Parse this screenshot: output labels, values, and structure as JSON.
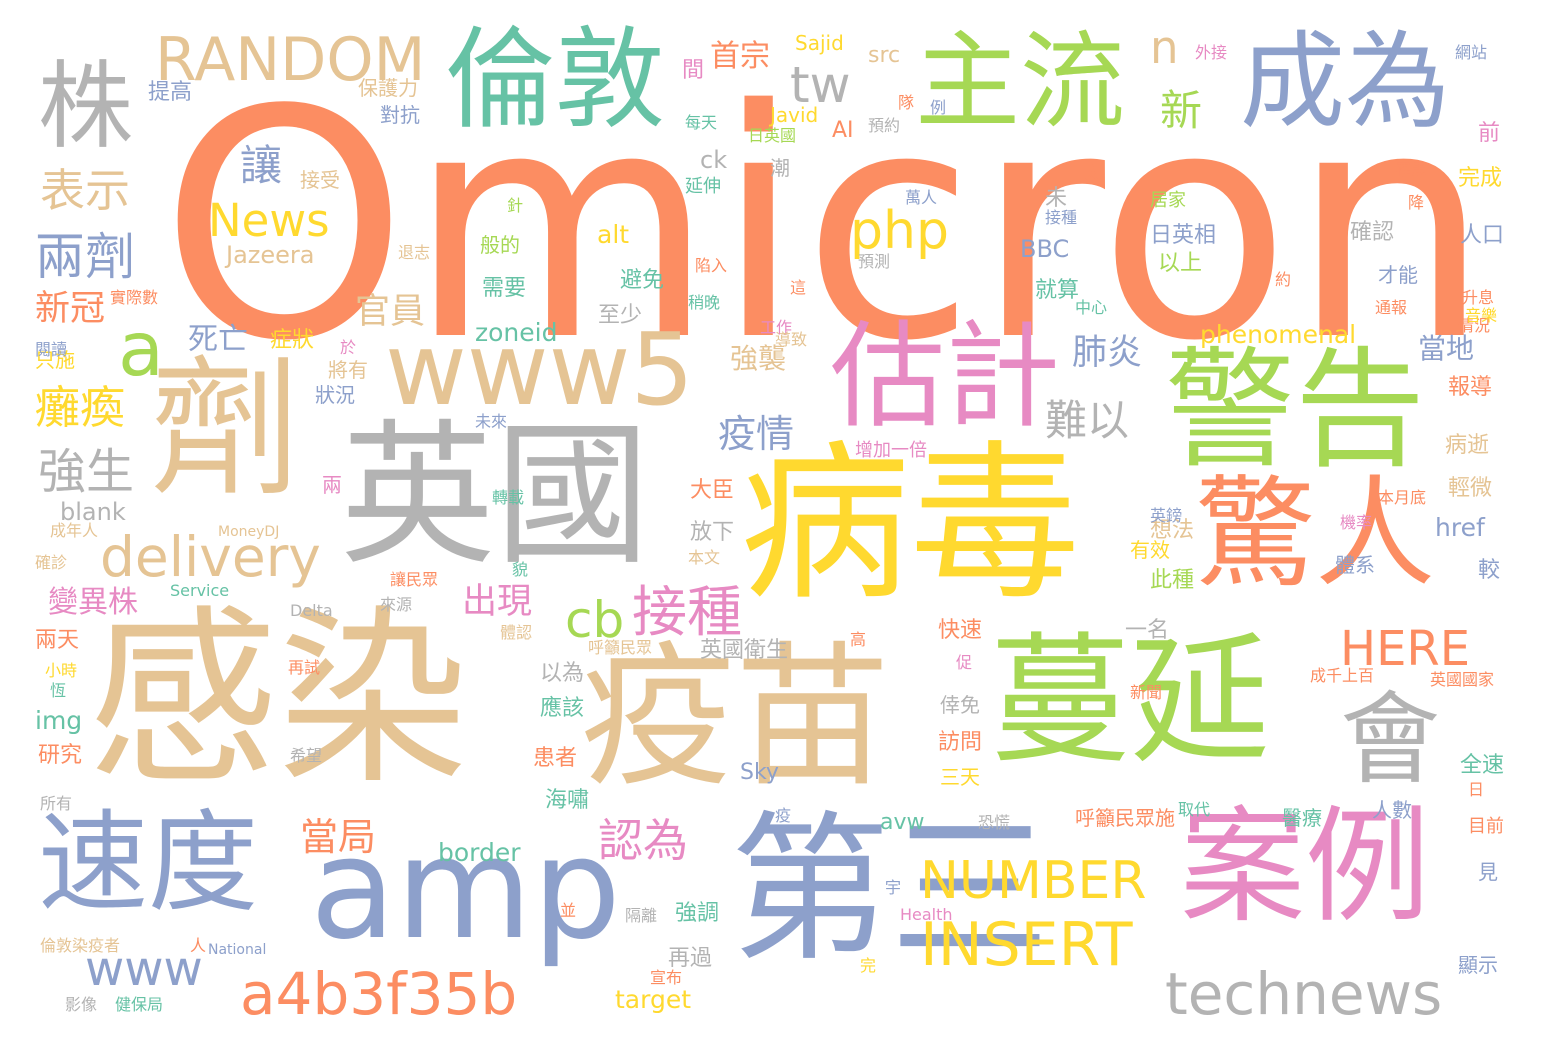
{
  "palette": {
    "orange": "#fc8d62",
    "tan": "#e5c494",
    "grey": "#b3b3b3",
    "blue": "#8da0cb",
    "green": "#a6d854",
    "teal": "#66c2a5",
    "yellow": "#ffd92f",
    "pink": "#e78ac3"
  },
  "words": [
    {
      "text": "Omicron",
      "color": "orange"
    },
    {
      "text": "感染",
      "color": "tan"
    },
    {
      "text": "病毒",
      "color": "yellow"
    },
    {
      "text": "英國",
      "color": "grey"
    },
    {
      "text": "疫苗",
      "color": "tan"
    },
    {
      "text": "蔓延",
      "color": "green"
    },
    {
      "text": "警告",
      "color": "green"
    },
    {
      "text": "劑",
      "color": "tan"
    },
    {
      "text": "第三",
      "color": "blue"
    },
    {
      "text": "amp",
      "color": "blue"
    },
    {
      "text": "案例",
      "color": "pink"
    },
    {
      "text": "速度",
      "color": "blue"
    },
    {
      "text": "驚人",
      "color": "orange"
    },
    {
      "text": "估計",
      "color": "pink"
    },
    {
      "text": "倫敦",
      "color": "teal"
    },
    {
      "text": "主流",
      "color": "green"
    },
    {
      "text": "成為",
      "color": "blue"
    },
    {
      "text": "www5",
      "color": "tan"
    },
    {
      "text": "會",
      "color": "grey"
    },
    {
      "text": "株",
      "color": "grey"
    },
    {
      "text": "RANDOM",
      "color": "tan"
    },
    {
      "text": "technews",
      "color": "grey"
    },
    {
      "text": "a4b3f35b",
      "color": "orange"
    },
    {
      "text": "INSERT",
      "color": "yellow"
    },
    {
      "text": "NUMBER",
      "color": "yellow"
    },
    {
      "text": "delivery",
      "color": "tan"
    },
    {
      "text": "www",
      "color": "blue"
    },
    {
      "text": "a",
      "color": "green"
    },
    {
      "text": "News",
      "color": "yellow"
    },
    {
      "text": "php",
      "color": "yellow"
    },
    {
      "text": "cb",
      "color": "green"
    },
    {
      "text": "接種",
      "color": "pink"
    },
    {
      "text": "HERE",
      "color": "orange"
    },
    {
      "text": "tw",
      "color": "grey"
    },
    {
      "text": "n",
      "color": "tan"
    },
    {
      "text": "表示",
      "color": "tan"
    },
    {
      "text": "兩劑",
      "color": "blue"
    },
    {
      "text": "讓",
      "color": "blue"
    },
    {
      "text": "新",
      "color": "green"
    },
    {
      "text": "疫情",
      "color": "blue"
    },
    {
      "text": "難以",
      "color": "grey"
    },
    {
      "text": "肺炎",
      "color": "blue"
    },
    {
      "text": "當局",
      "color": "orange"
    },
    {
      "text": "認為",
      "color": "pink"
    },
    {
      "text": "出現",
      "color": "pink"
    },
    {
      "text": "官員",
      "color": "tan"
    },
    {
      "text": "強生",
      "color": "grey"
    },
    {
      "text": "癱瘓",
      "color": "yellow"
    },
    {
      "text": "新冠",
      "color": "orange"
    },
    {
      "text": "變異株",
      "color": "pink"
    },
    {
      "text": "死亡",
      "color": "blue"
    },
    {
      "text": "當地",
      "color": "blue"
    },
    {
      "text": "強襲",
      "color": "tan"
    },
    {
      "text": "首宗",
      "color": "orange"
    },
    {
      "text": "blank",
      "color": "grey"
    },
    {
      "text": "Jazeera",
      "color": "tan"
    },
    {
      "text": "Sajid",
      "color": "yellow"
    },
    {
      "text": "src",
      "color": "tan"
    },
    {
      "text": "Javid",
      "color": "yellow"
    },
    {
      "text": "AI",
      "color": "orange"
    },
    {
      "text": "ck",
      "color": "grey"
    },
    {
      "text": "alt",
      "color": "yellow"
    },
    {
      "text": "BBC",
      "color": "blue"
    },
    {
      "text": "zoneid",
      "color": "teal"
    },
    {
      "text": "phenomenal",
      "color": "yellow"
    },
    {
      "text": "href",
      "color": "blue"
    },
    {
      "text": "border",
      "color": "teal"
    },
    {
      "text": "avw",
      "color": "teal"
    },
    {
      "text": "img",
      "color": "teal"
    },
    {
      "text": "target",
      "color": "yellow"
    },
    {
      "text": "Sky",
      "color": "blue"
    },
    {
      "text": "MoneyDJ",
      "color": "tan"
    },
    {
      "text": "Service",
      "color": "teal"
    },
    {
      "text": "Delta",
      "color": "grey"
    },
    {
      "text": "Health",
      "color": "pink"
    },
    {
      "text": "National",
      "color": "blue"
    },
    {
      "text": "提高",
      "color": "blue"
    },
    {
      "text": "保護力",
      "color": "tan"
    },
    {
      "text": "對抗",
      "color": "blue"
    },
    {
      "text": "接受",
      "color": "tan"
    },
    {
      "text": "間",
      "color": "pink"
    },
    {
      "text": "外接",
      "color": "pink"
    },
    {
      "text": "網站",
      "color": "blue"
    },
    {
      "text": "每天",
      "color": "teal"
    },
    {
      "text": "日英國",
      "color": "green"
    },
    {
      "text": "預約",
      "color": "grey"
    },
    {
      "text": "前",
      "color": "pink"
    },
    {
      "text": "完成",
      "color": "yellow"
    },
    {
      "text": "人口",
      "color": "blue"
    },
    {
      "text": "確認",
      "color": "grey"
    },
    {
      "text": "才能",
      "color": "blue"
    },
    {
      "text": "日英相",
      "color": "blue"
    },
    {
      "text": "以上",
      "color": "green"
    },
    {
      "text": "居家",
      "color": "green"
    },
    {
      "text": "就算",
      "color": "teal"
    },
    {
      "text": "延伸",
      "color": "teal"
    },
    {
      "text": "針",
      "color": "green"
    },
    {
      "text": "接種",
      "color": "blue"
    },
    {
      "text": "般的",
      "color": "green"
    },
    {
      "text": "避免",
      "color": "teal"
    },
    {
      "text": "需要",
      "color": "teal"
    },
    {
      "text": "至少",
      "color": "grey"
    },
    {
      "text": "稍晚",
      "color": "teal"
    },
    {
      "text": "將有",
      "color": "tan"
    },
    {
      "text": "症狀",
      "color": "yellow"
    },
    {
      "text": "狀況",
      "color": "blue"
    },
    {
      "text": "只施",
      "color": "yellow"
    },
    {
      "text": "閱讀",
      "color": "blue"
    },
    {
      "text": "未來",
      "color": "blue"
    },
    {
      "text": "增加一倍",
      "color": "pink"
    },
    {
      "text": "報導",
      "color": "orange"
    },
    {
      "text": "病逝",
      "color": "tan"
    },
    {
      "text": "輕微",
      "color": "tan"
    },
    {
      "text": "想法",
      "color": "tan"
    },
    {
      "text": "此種",
      "color": "green"
    },
    {
      "text": "有效",
      "color": "yellow"
    },
    {
      "text": "體系",
      "color": "blue"
    },
    {
      "text": "較",
      "color": "blue"
    },
    {
      "text": "大臣",
      "color": "orange"
    },
    {
      "text": "放下",
      "color": "grey"
    },
    {
      "text": "本文",
      "color": "tan"
    },
    {
      "text": "轉載",
      "color": "teal"
    },
    {
      "text": "兩",
      "color": "pink"
    },
    {
      "text": "兩天",
      "color": "orange"
    },
    {
      "text": "成年人",
      "color": "tan"
    },
    {
      "text": "確診",
      "color": "tan"
    },
    {
      "text": "來源",
      "color": "grey"
    },
    {
      "text": "快速",
      "color": "orange"
    },
    {
      "text": "一名",
      "color": "grey"
    },
    {
      "text": "英國衛生",
      "color": "grey"
    },
    {
      "text": "以為",
      "color": "grey"
    },
    {
      "text": "應該",
      "color": "teal"
    },
    {
      "text": "患者",
      "color": "orange"
    },
    {
      "text": "海嘯",
      "color": "teal"
    },
    {
      "text": "研究",
      "color": "orange"
    },
    {
      "text": "訪問",
      "color": "orange"
    },
    {
      "text": "倖免",
      "color": "grey"
    },
    {
      "text": "三天",
      "color": "yellow"
    },
    {
      "text": "呼籲民眾施",
      "color": "orange"
    },
    {
      "text": "醫療",
      "color": "teal"
    },
    {
      "text": "人數",
      "color": "blue"
    },
    {
      "text": "全速",
      "color": "teal"
    },
    {
      "text": "目前",
      "color": "orange"
    },
    {
      "text": "強調",
      "color": "teal"
    },
    {
      "text": "再過",
      "color": "grey"
    },
    {
      "text": "宣布",
      "color": "orange"
    },
    {
      "text": "健保局",
      "color": "teal"
    },
    {
      "text": "影像",
      "color": "grey"
    },
    {
      "text": "倫敦染疫者",
      "color": "tan"
    },
    {
      "text": "所有",
      "color": "grey"
    },
    {
      "text": "顯示",
      "color": "blue"
    },
    {
      "text": "見",
      "color": "blue"
    },
    {
      "text": "取代",
      "color": "teal"
    },
    {
      "text": "英國國家",
      "color": "orange"
    },
    {
      "text": "成千上百",
      "color": "orange"
    },
    {
      "text": "新聞",
      "color": "orange"
    },
    {
      "text": "英鎊",
      "color": "blue"
    },
    {
      "text": "機率",
      "color": "pink"
    },
    {
      "text": "本月底",
      "color": "orange"
    },
    {
      "text": "升息",
      "color": "orange"
    },
    {
      "text": "情況",
      "color": "orange"
    },
    {
      "text": "通報",
      "color": "orange"
    },
    {
      "text": "工作",
      "color": "pink"
    },
    {
      "text": "導致",
      "color": "tan"
    },
    {
      "text": "預測",
      "color": "grey"
    },
    {
      "text": "陷入",
      "color": "orange"
    },
    {
      "text": "萬人",
      "color": "blue"
    },
    {
      "text": "罹患",
      "color": "orange"
    },
    {
      "text": "降",
      "color": "orange"
    },
    {
      "text": "約",
      "color": "orange"
    },
    {
      "text": "音樂",
      "color": "yellow"
    },
    {
      "text": "太",
      "color": "orange"
    },
    {
      "text": "中心",
      "color": "teal"
    },
    {
      "text": "未",
      "color": "grey"
    },
    {
      "text": "高",
      "color": "orange"
    },
    {
      "text": "呼籲民眾",
      "color": "tan"
    },
    {
      "text": "讓民眾",
      "color": "orange"
    },
    {
      "text": "小時",
      "color": "yellow"
    },
    {
      "text": "再試",
      "color": "orange"
    },
    {
      "text": "希望",
      "color": "grey"
    },
    {
      "text": "恐慌",
      "color": "grey"
    },
    {
      "text": "宇",
      "color": "blue"
    },
    {
      "text": "並",
      "color": "orange"
    },
    {
      "text": "隔離",
      "color": "grey"
    },
    {
      "text": "完",
      "color": "yellow"
    },
    {
      "text": "人",
      "color": "orange"
    },
    {
      "text": "於",
      "color": "pink"
    },
    {
      "text": "實際數",
      "color": "orange"
    },
    {
      "text": "退志",
      "color": "tan"
    },
    {
      "text": "潮",
      "color": "grey"
    },
    {
      "text": "這",
      "color": "orange"
    },
    {
      "text": "例",
      "color": "blue"
    },
    {
      "text": "隊",
      "color": "orange"
    },
    {
      "text": "恆",
      "color": "teal"
    },
    {
      "text": "貌",
      "color": "teal"
    },
    {
      "text": "日",
      "color": "orange"
    },
    {
      "text": "促",
      "color": "pink"
    },
    {
      "text": "疫",
      "color": "blue"
    },
    {
      "text": "體認",
      "color": "tan"
    }
  ]
}
